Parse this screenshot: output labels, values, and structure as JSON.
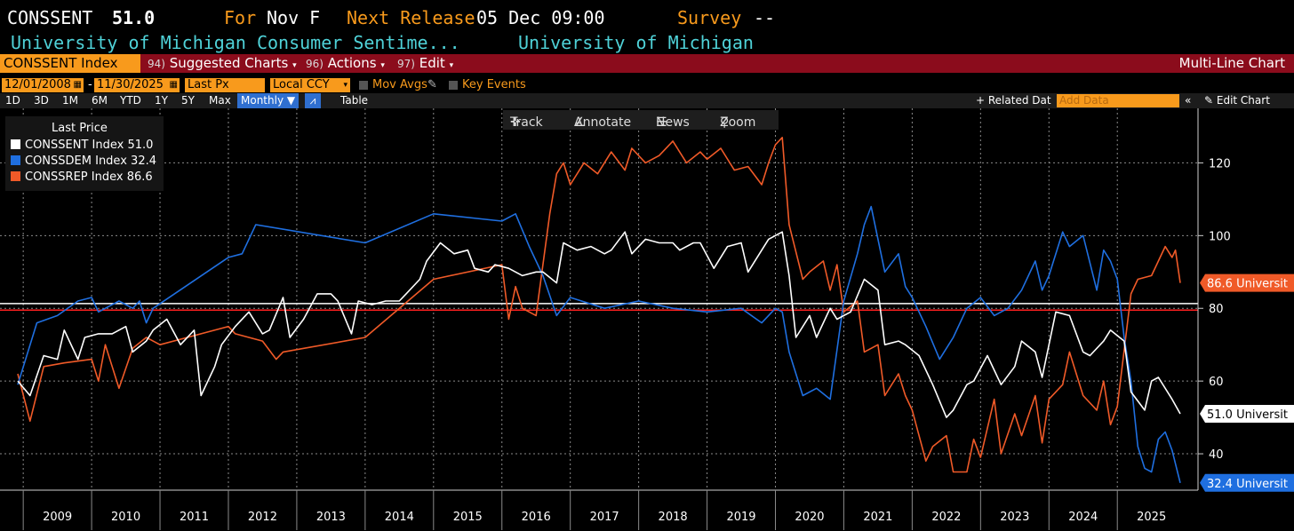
{
  "header": {
    "ticker": "CONSSENT",
    "value": "51.0",
    "for_label": "For",
    "period": "Nov F",
    "next_release_label": "Next Release",
    "next_release": "05 Dec 09:00",
    "survey_label": "Survey",
    "survey_value": "--",
    "description": "University of Michigan Consumer Sentime...",
    "source": "University of Michigan"
  },
  "menubar": {
    "security": "CONSSENT Index",
    "suggested_num": "94)",
    "suggested": "Suggested Charts",
    "actions_num": "96)",
    "actions": "Actions",
    "edit_num": "97)",
    "edit": "Edit",
    "chart_type": "Multi-Line Chart"
  },
  "controls": {
    "start_date": "12/01/2008",
    "dash": "-",
    "end_date": "11/30/2025",
    "price_field": "Last Px",
    "currency": "Local CCY",
    "mov_avgs": "Mov Avgs",
    "key_events": "Key Events"
  },
  "rangebar": {
    "ranges": [
      "1D",
      "3D",
      "1M",
      "6M",
      "YTD",
      "1Y",
      "5Y",
      "Max"
    ],
    "frequency": "Monthly",
    "table": "Table",
    "related": "+ Related Dat",
    "add_data_placeholder": "Add Data",
    "edit_chart": "Edit Chart"
  },
  "toolbar": {
    "track": "Track",
    "annotate": "Annotate",
    "news": "News",
    "zoom": "Zoom"
  },
  "colors": {
    "sentiment": "#ffffff",
    "democrat": "#1f6fe0",
    "republican": "#f05a28",
    "accent": "#f89a1c",
    "menubar": "#8b0c1c"
  },
  "chart_data": {
    "type": "line",
    "legend_title": "Last Price",
    "legend_position": "top-left",
    "x_range": [
      2008.92,
      2025.92
    ],
    "ylim": [
      30,
      135
    ],
    "yticks": [
      40,
      60,
      80,
      100,
      120
    ],
    "xticks": [
      "2009",
      "2010",
      "2011",
      "2012",
      "2013",
      "2014",
      "2015",
      "2016",
      "2017",
      "2018",
      "2019",
      "2020",
      "2021",
      "2022",
      "2023",
      "2024",
      "2025"
    ],
    "grid": true,
    "reference_lines": [
      {
        "value": 81.3,
        "color": "#ffffff"
      },
      {
        "value": 79.5,
        "color": "#ff2020"
      }
    ],
    "series": [
      {
        "name": "CONSSENT Index",
        "last": "51.0",
        "last_tag": "51.0 Universit",
        "color": "#ffffff",
        "points": [
          [
            2008.92,
            60
          ],
          [
            2009.1,
            56
          ],
          [
            2009.3,
            67
          ],
          [
            2009.5,
            66
          ],
          [
            2009.6,
            74
          ],
          [
            2009.8,
            66
          ],
          [
            2009.9,
            72
          ],
          [
            2010.1,
            73
          ],
          [
            2010.3,
            73
          ],
          [
            2010.5,
            75
          ],
          [
            2010.6,
            68
          ],
          [
            2010.8,
            71
          ],
          [
            2010.9,
            74
          ],
          [
            2011.1,
            77
          ],
          [
            2011.3,
            70
          ],
          [
            2011.5,
            74
          ],
          [
            2011.6,
            56
          ],
          [
            2011.8,
            64
          ],
          [
            2011.9,
            70
          ],
          [
            2012.1,
            75
          ],
          [
            2012.3,
            79
          ],
          [
            2012.5,
            73
          ],
          [
            2012.6,
            74
          ],
          [
            2012.8,
            83
          ],
          [
            2012.9,
            72
          ],
          [
            2013.1,
            77
          ],
          [
            2013.3,
            84
          ],
          [
            2013.5,
            84
          ],
          [
            2013.6,
            82
          ],
          [
            2013.8,
            73
          ],
          [
            2013.9,
            82
          ],
          [
            2014.1,
            81
          ],
          [
            2014.3,
            82
          ],
          [
            2014.5,
            82
          ],
          [
            2014.6,
            84
          ],
          [
            2014.8,
            88
          ],
          [
            2014.9,
            93
          ],
          [
            2015.1,
            98
          ],
          [
            2015.3,
            95
          ],
          [
            2015.5,
            96
          ],
          [
            2015.6,
            91
          ],
          [
            2015.8,
            90
          ],
          [
            2015.9,
            92
          ],
          [
            2016.1,
            91
          ],
          [
            2016.3,
            89
          ],
          [
            2016.5,
            90
          ],
          [
            2016.6,
            90
          ],
          [
            2016.8,
            87
          ],
          [
            2016.9,
            98
          ],
          [
            2017.1,
            96
          ],
          [
            2017.3,
            97
          ],
          [
            2017.5,
            95
          ],
          [
            2017.6,
            96
          ],
          [
            2017.8,
            101
          ],
          [
            2017.9,
            95
          ],
          [
            2018.1,
            99
          ],
          [
            2018.3,
            98
          ],
          [
            2018.5,
            98
          ],
          [
            2018.6,
            96
          ],
          [
            2018.8,
            98
          ],
          [
            2018.9,
            98
          ],
          [
            2019.1,
            91
          ],
          [
            2019.3,
            97
          ],
          [
            2019.5,
            98
          ],
          [
            2019.6,
            90
          ],
          [
            2019.8,
            96
          ],
          [
            2019.9,
            99
          ],
          [
            2020.1,
            101
          ],
          [
            2020.2,
            89
          ],
          [
            2020.3,
            72
          ],
          [
            2020.5,
            78
          ],
          [
            2020.6,
            72
          ],
          [
            2020.8,
            80
          ],
          [
            2020.9,
            77
          ],
          [
            2021.1,
            79
          ],
          [
            2021.3,
            88
          ],
          [
            2021.5,
            85
          ],
          [
            2021.6,
            70
          ],
          [
            2021.8,
            71
          ],
          [
            2021.9,
            70
          ],
          [
            2022.1,
            67
          ],
          [
            2022.3,
            59
          ],
          [
            2022.5,
            50
          ],
          [
            2022.6,
            52
          ],
          [
            2022.8,
            59
          ],
          [
            2022.9,
            60
          ],
          [
            2023.1,
            67
          ],
          [
            2023.3,
            59
          ],
          [
            2023.5,
            64
          ],
          [
            2023.6,
            71
          ],
          [
            2023.8,
            68
          ],
          [
            2023.9,
            61
          ],
          [
            2024.1,
            79
          ],
          [
            2024.3,
            78
          ],
          [
            2024.5,
            68
          ],
          [
            2024.6,
            67
          ],
          [
            2024.8,
            71
          ],
          [
            2024.9,
            74
          ],
          [
            2025.1,
            71
          ],
          [
            2025.2,
            57
          ],
          [
            2025.4,
            52
          ],
          [
            2025.5,
            60
          ],
          [
            2025.6,
            61
          ],
          [
            2025.8,
            55
          ],
          [
            2025.92,
            51
          ]
        ]
      },
      {
        "name": "CONSSDEM Index",
        "last": "32.4",
        "last_tag": "32.4 Universit",
        "color": "#1f6fe0",
        "points": [
          [
            2008.92,
            59
          ],
          [
            2009.2,
            76
          ],
          [
            2009.5,
            78
          ],
          [
            2009.8,
            82
          ],
          [
            2010.0,
            83
          ],
          [
            2010.1,
            79
          ],
          [
            2010.4,
            82
          ],
          [
            2010.6,
            80
          ],
          [
            2010.7,
            82
          ],
          [
            2010.8,
            76
          ],
          [
            2010.9,
            80
          ],
          [
            2012.0,
            94
          ],
          [
            2012.2,
            95
          ],
          [
            2012.4,
            103
          ],
          [
            2014.0,
            98
          ],
          [
            2015.0,
            106
          ],
          [
            2016.0,
            104
          ],
          [
            2016.2,
            106
          ],
          [
            2016.4,
            97
          ],
          [
            2016.6,
            89
          ],
          [
            2016.8,
            78
          ],
          [
            2017.0,
            83
          ],
          [
            2017.5,
            80
          ],
          [
            2018.0,
            82
          ],
          [
            2018.5,
            80
          ],
          [
            2019.0,
            79
          ],
          [
            2019.5,
            80
          ],
          [
            2019.8,
            76
          ],
          [
            2020.0,
            80
          ],
          [
            2020.1,
            79
          ],
          [
            2020.2,
            68
          ],
          [
            2020.4,
            56
          ],
          [
            2020.6,
            58
          ],
          [
            2020.8,
            55
          ],
          [
            2021.0,
            82
          ],
          [
            2021.2,
            95
          ],
          [
            2021.3,
            103
          ],
          [
            2021.4,
            108
          ],
          [
            2021.6,
            90
          ],
          [
            2021.8,
            95
          ],
          [
            2021.9,
            86
          ],
          [
            2022.0,
            83
          ],
          [
            2022.2,
            75
          ],
          [
            2022.4,
            66
          ],
          [
            2022.6,
            72
          ],
          [
            2022.8,
            80
          ],
          [
            2023.0,
            83
          ],
          [
            2023.2,
            78
          ],
          [
            2023.4,
            80
          ],
          [
            2023.6,
            85
          ],
          [
            2023.8,
            93
          ],
          [
            2023.9,
            85
          ],
          [
            2024.0,
            89
          ],
          [
            2024.2,
            101
          ],
          [
            2024.3,
            97
          ],
          [
            2024.5,
            100
          ],
          [
            2024.7,
            85
          ],
          [
            2024.8,
            96
          ],
          [
            2024.9,
            93
          ],
          [
            2025.0,
            88
          ],
          [
            2025.1,
            72
          ],
          [
            2025.2,
            60
          ],
          [
            2025.3,
            42
          ],
          [
            2025.4,
            36
          ],
          [
            2025.5,
            35
          ],
          [
            2025.6,
            44
          ],
          [
            2025.7,
            46
          ],
          [
            2025.8,
            41
          ],
          [
            2025.92,
            32
          ]
        ]
      },
      {
        "name": "CONSSREP Index",
        "last": "86.6",
        "last_tag": "86.6 Universit",
        "color": "#f05a28",
        "points": [
          [
            2008.92,
            62
          ],
          [
            2009.1,
            49
          ],
          [
            2009.3,
            64
          ],
          [
            2009.6,
            65
          ],
          [
            2010.0,
            66
          ],
          [
            2010.1,
            60
          ],
          [
            2010.2,
            70
          ],
          [
            2010.4,
            58
          ],
          [
            2010.6,
            69
          ],
          [
            2010.8,
            72
          ],
          [
            2011.0,
            70
          ],
          [
            2012.0,
            75
          ],
          [
            2012.1,
            73
          ],
          [
            2012.3,
            72
          ],
          [
            2012.5,
            71
          ],
          [
            2012.7,
            66
          ],
          [
            2012.8,
            68
          ],
          [
            2014.0,
            72
          ],
          [
            2015.0,
            88
          ],
          [
            2016.0,
            92
          ],
          [
            2016.1,
            77
          ],
          [
            2016.2,
            86
          ],
          [
            2016.3,
            80
          ],
          [
            2016.5,
            78
          ],
          [
            2016.7,
            106
          ],
          [
            2016.8,
            117
          ],
          [
            2016.9,
            120
          ],
          [
            2017.0,
            114
          ],
          [
            2017.2,
            120
          ],
          [
            2017.4,
            117
          ],
          [
            2017.6,
            123
          ],
          [
            2017.8,
            118
          ],
          [
            2017.9,
            124
          ],
          [
            2018.1,
            120
          ],
          [
            2018.3,
            122
          ],
          [
            2018.5,
            126
          ],
          [
            2018.7,
            120
          ],
          [
            2018.9,
            123
          ],
          [
            2019.0,
            121
          ],
          [
            2019.2,
            124
          ],
          [
            2019.4,
            118
          ],
          [
            2019.6,
            119
          ],
          [
            2019.8,
            114
          ],
          [
            2019.9,
            120
          ],
          [
            2020.0,
            125
          ],
          [
            2020.1,
            127
          ],
          [
            2020.2,
            103
          ],
          [
            2020.4,
            88
          ],
          [
            2020.5,
            90
          ],
          [
            2020.7,
            93
          ],
          [
            2020.8,
            85
          ],
          [
            2020.9,
            92
          ],
          [
            2021.0,
            79
          ],
          [
            2021.2,
            82
          ],
          [
            2021.3,
            68
          ],
          [
            2021.5,
            70
          ],
          [
            2021.6,
            56
          ],
          [
            2021.8,
            62
          ],
          [
            2021.9,
            56
          ],
          [
            2022.0,
            52
          ],
          [
            2022.2,
            38
          ],
          [
            2022.3,
            42
          ],
          [
            2022.5,
            45
          ],
          [
            2022.6,
            35
          ],
          [
            2022.8,
            35
          ],
          [
            2022.9,
            44
          ],
          [
            2023.0,
            39
          ],
          [
            2023.2,
            55
          ],
          [
            2023.3,
            40
          ],
          [
            2023.5,
            51
          ],
          [
            2023.6,
            45
          ],
          [
            2023.8,
            56
          ],
          [
            2023.9,
            43
          ],
          [
            2024.0,
            55
          ],
          [
            2024.2,
            59
          ],
          [
            2024.3,
            68
          ],
          [
            2024.5,
            56
          ],
          [
            2024.7,
            52
          ],
          [
            2024.8,
            60
          ],
          [
            2024.9,
            48
          ],
          [
            2025.0,
            53
          ],
          [
            2025.2,
            84
          ],
          [
            2025.3,
            88
          ],
          [
            2025.5,
            89
          ],
          [
            2025.6,
            93
          ],
          [
            2025.7,
            97
          ],
          [
            2025.8,
            94
          ],
          [
            2025.85,
            96
          ],
          [
            2025.92,
            87
          ]
        ]
      }
    ]
  }
}
